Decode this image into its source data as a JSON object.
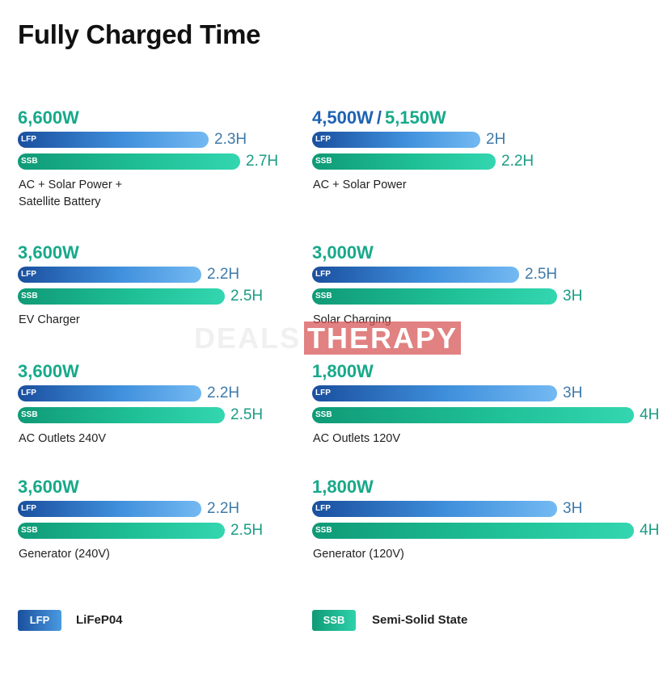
{
  "chart_data": {
    "type": "bar",
    "title": "Fully Charged Time",
    "unit": "H",
    "xlim": [
      0,
      4
    ],
    "legend": [
      {
        "key": "LFP",
        "label": "LiFeP04",
        "color": "#1f63b3"
      },
      {
        "key": "SSB",
        "label": "Semi-Solid State",
        "color": "#17a98a"
      }
    ],
    "panels": [
      {
        "watts": [
          {
            "text": "6,600W",
            "color": "teal"
          }
        ],
        "source_lines": [
          "AC + Solar Power +",
          "Satellite Battery"
        ],
        "lfp": 2.3,
        "ssb": 2.7,
        "lfp_label": "2.3H",
        "ssb_label": "2.7H"
      },
      {
        "watts": [
          {
            "text": "4,500W",
            "color": "blue"
          },
          {
            "text": "5,150W",
            "color": "teal"
          }
        ],
        "separator": "/",
        "source_lines": [
          "AC + Solar Power"
        ],
        "lfp": 2,
        "ssb": 2.2,
        "lfp_label": "2H",
        "ssb_label": "2.2H"
      },
      {
        "watts": [
          {
            "text": "3,600W",
            "color": "teal"
          }
        ],
        "source_lines": [
          "EV Charger"
        ],
        "lfp": 2.2,
        "ssb": 2.5,
        "lfp_label": "2.2H",
        "ssb_label": "2.5H"
      },
      {
        "watts": [
          {
            "text": "3,000W",
            "color": "teal"
          }
        ],
        "source_lines": [
          "Solar Charging"
        ],
        "lfp": 2.5,
        "ssb": 3,
        "lfp_label": "2.5H",
        "ssb_label": "3H"
      },
      {
        "watts": [
          {
            "text": "3,600W",
            "color": "teal"
          }
        ],
        "source_lines": [
          "AC Outlets 240V"
        ],
        "lfp": 2.2,
        "ssb": 2.5,
        "lfp_label": "2.2H",
        "ssb_label": "2.5H"
      },
      {
        "watts": [
          {
            "text": "1,800W",
            "color": "teal"
          }
        ],
        "source_lines": [
          "AC Outlets 120V"
        ],
        "lfp": 3,
        "ssb": 4,
        "lfp_label": "3H",
        "ssb_label": "4H"
      },
      {
        "watts": [
          {
            "text": "3,600W",
            "color": "teal"
          }
        ],
        "source_lines": [
          "Generator (240V)"
        ],
        "lfp": 2.2,
        "ssb": 2.5,
        "lfp_label": "2.2H",
        "ssb_label": "2.5H"
      },
      {
        "watts": [
          {
            "text": "1,800W",
            "color": "teal"
          }
        ],
        "source_lines": [
          "Generator (120V)"
        ],
        "lfp": 3,
        "ssb": 4,
        "lfp_label": "3H",
        "ssb_label": "4H"
      }
    ]
  },
  "watermark": {
    "part1": "DEALS",
    "part2": "THERAPY"
  }
}
